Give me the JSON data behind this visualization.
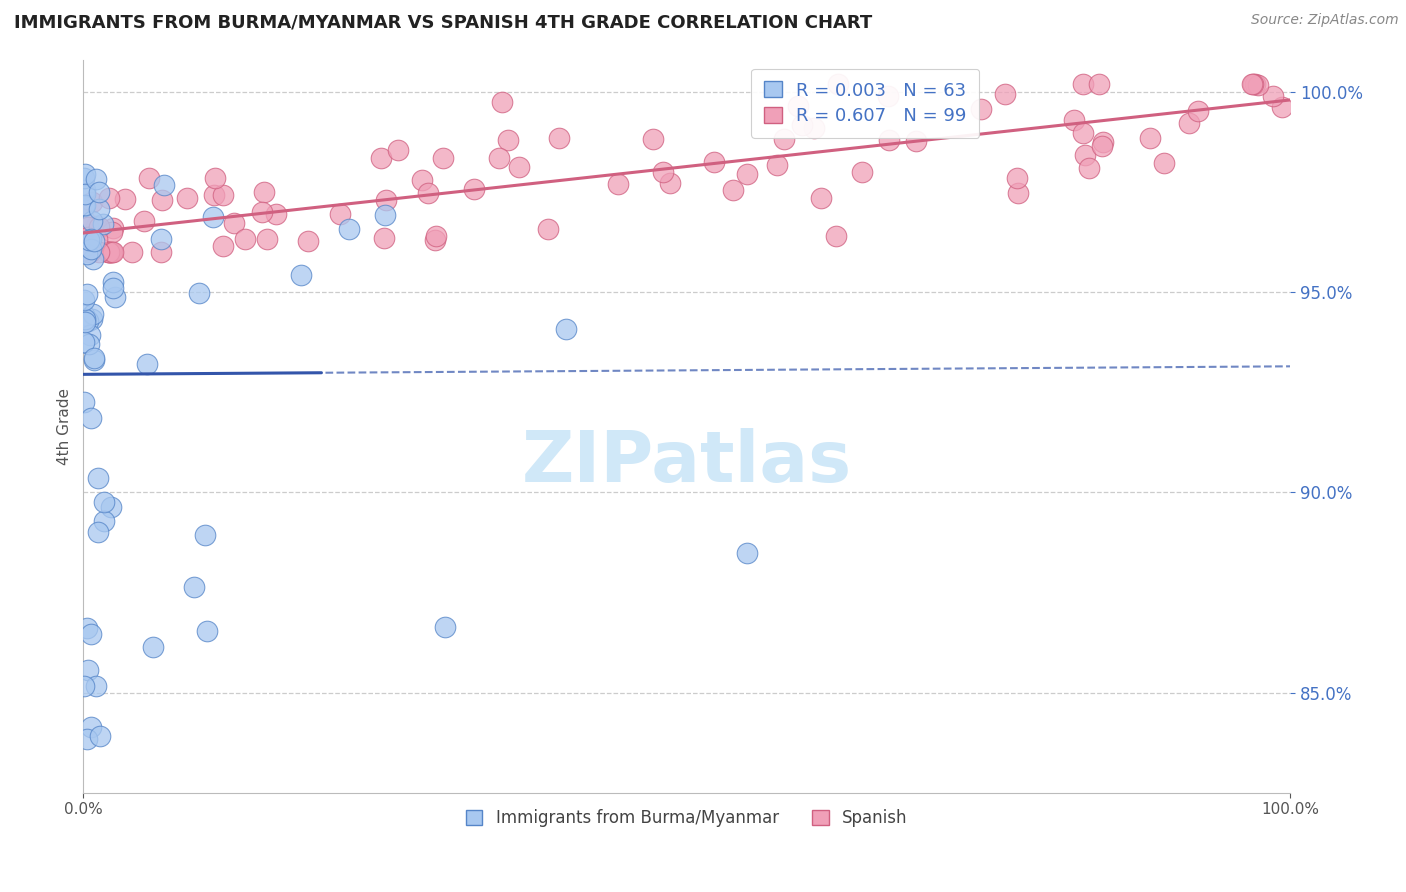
{
  "title": "IMMIGRANTS FROM BURMA/MYANMAR VS SPANISH 4TH GRADE CORRELATION CHART",
  "source_text": "Source: ZipAtlas.com",
  "ylabel": "4th Grade",
  "xlim": [
    0.0,
    1.0
  ],
  "ylim": [
    0.825,
    1.008
  ],
  "yticks": [
    0.85,
    0.9,
    0.95,
    1.0
  ],
  "ytick_labels": [
    "85.0%",
    "90.0%",
    "95.0%",
    "100.0%"
  ],
  "xticks": [
    0.0,
    1.0
  ],
  "xtick_labels": [
    "0.0%",
    "100.0%"
  ],
  "blue_fill": "#A8C8F0",
  "blue_edge": "#5585C8",
  "pink_fill": "#F0A0B8",
  "pink_edge": "#D06080",
  "blue_line_color": "#3355AA",
  "pink_line_color": "#D06080",
  "legend_blue_fill": "#A8C8F0",
  "legend_blue_edge": "#5585C8",
  "legend_pink_fill": "#F0A0B8",
  "legend_pink_edge": "#D06080",
  "R_blue": 0.003,
  "N_blue": 63,
  "R_pink": 0.607,
  "N_pink": 99,
  "grid_color": "#CCCCCC",
  "watermark_color": "#D0E8F8",
  "title_color": "#222222",
  "source_color": "#888888",
  "ylabel_color": "#555555",
  "ytick_color": "#4472C4",
  "xtick_color": "#555555"
}
